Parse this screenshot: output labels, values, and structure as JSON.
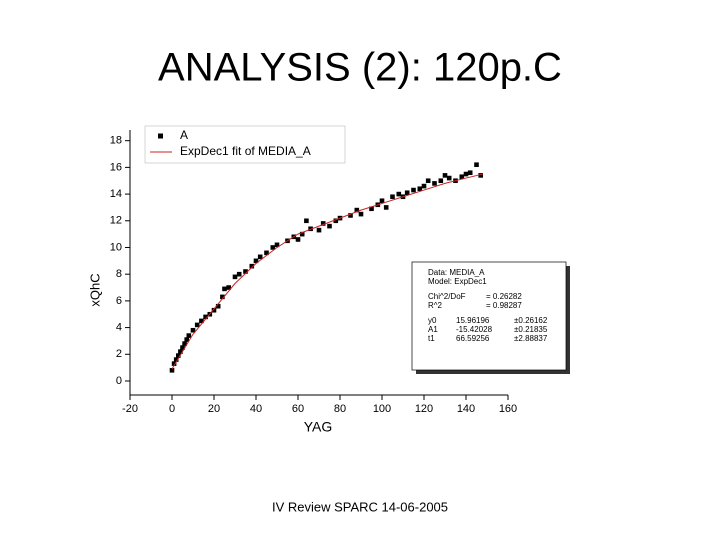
{
  "chart_data": {
    "type": "scatter",
    "title": "ANALYSIS (2): 120p.C",
    "xlabel": "YAG",
    "ylabel": "xQhC",
    "footer": "IV Review SPARC 14-06-2005",
    "xlim": [
      -20,
      160
    ],
    "ylim": [
      -1.05,
      18.8
    ],
    "xticks": [
      -20,
      0,
      20,
      40,
      60,
      80,
      100,
      120,
      140,
      160
    ],
    "yticks": [
      0,
      2,
      4,
      6,
      8,
      10,
      12,
      14,
      16,
      18
    ],
    "series": [
      {
        "name": "A",
        "color": "#000000",
        "x": [
          0,
          1,
          2,
          3,
          4,
          5,
          6,
          7,
          8,
          10,
          12,
          14,
          16,
          18,
          20,
          22,
          24,
          25,
          27,
          30,
          32,
          35,
          38,
          40,
          42,
          45,
          48,
          50,
          55,
          58,
          60,
          62,
          64,
          66,
          70,
          72,
          75,
          78,
          80,
          85,
          88,
          90,
          95,
          98,
          100,
          102,
          105,
          108,
          110,
          112,
          115,
          118,
          120,
          122,
          125,
          128,
          130,
          132,
          135,
          138,
          140,
          142,
          145,
          147
        ],
        "values": [
          0.8,
          1.3,
          1.6,
          1.9,
          2.2,
          2.5,
          2.8,
          3.1,
          3.4,
          3.8,
          4.2,
          4.5,
          4.8,
          5.0,
          5.3,
          5.6,
          6.3,
          6.9,
          7.0,
          7.8,
          8.0,
          8.2,
          8.6,
          9.0,
          9.3,
          9.6,
          10.0,
          10.2,
          10.5,
          10.8,
          10.6,
          11.0,
          12.0,
          11.4,
          11.3,
          11.8,
          11.6,
          12.0,
          12.2,
          12.4,
          12.8,
          12.5,
          12.9,
          13.2,
          13.5,
          13.0,
          13.8,
          14.0,
          13.8,
          14.1,
          14.3,
          14.4,
          14.6,
          15.0,
          14.8,
          15.0,
          15.4,
          15.2,
          15.0,
          15.3,
          15.5,
          15.6,
          16.2,
          15.4
        ]
      },
      {
        "name": "ExpDec1 fit of MEDIA_A",
        "color": "#cc2222",
        "line": true,
        "x": [
          0,
          10,
          20,
          30,
          40,
          50,
          60,
          70,
          80,
          90,
          100,
          110,
          120,
          130,
          140,
          148
        ],
        "values": [
          0.9,
          3.5,
          5.4,
          7.3,
          8.8,
          10.0,
          11.0,
          11.6,
          12.2,
          12.8,
          13.3,
          13.8,
          14.3,
          14.8,
          15.2,
          15.5
        ]
      }
    ],
    "info": {
      "lines": [
        "Data: MEDIA_A",
        "Model: ExpDec1"
      ],
      "stats": [
        [
          "Chi^2/DoF",
          "= 0.26282"
        ],
        [
          "R^2",
          "= 0.98287"
        ]
      ],
      "params": [
        [
          "y0",
          "15.96196",
          "±0.26162"
        ],
        [
          "A1",
          "-15.42028",
          "±0.21835"
        ],
        [
          "t1",
          "66.59256",
          "±2.88837"
        ]
      ]
    }
  }
}
